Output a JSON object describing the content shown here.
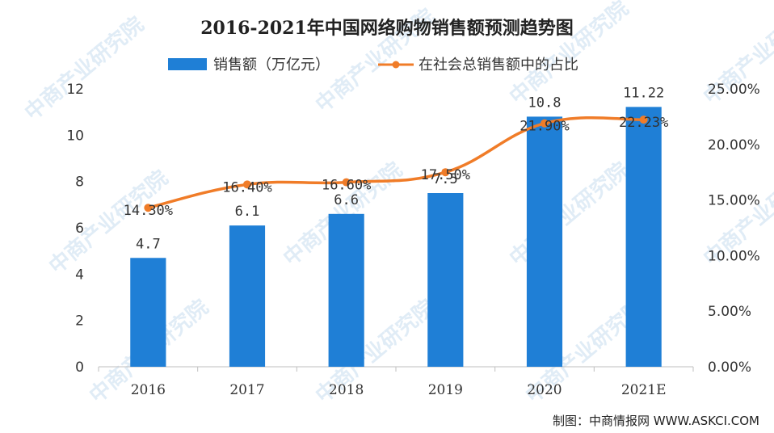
{
  "watermark": "中商产业研究院",
  "source_note": "制图：中商情报网 WWW.ASKCI.COM",
  "chart_data": {
    "type": "bar",
    "title": "2016-2021年中国网络购物销售额预测趋势图",
    "categories": [
      "2016",
      "2017",
      "2018",
      "2019",
      "2020",
      "2021E"
    ],
    "series": [
      {
        "name": "销售额（万亿元）",
        "kind": "bar",
        "axis": "left",
        "color": "#1f7fd6",
        "values": [
          4.7,
          6.1,
          6.6,
          7.5,
          10.8,
          11.22
        ],
        "labels": [
          "4.7",
          "6.1",
          "6.6",
          "7.5",
          "10.8",
          "11.22"
        ]
      },
      {
        "name": "在社会总销售额中的占比",
        "kind": "line",
        "axis": "right",
        "color": "#f07c28",
        "values": [
          14.3,
          16.4,
          16.6,
          17.5,
          21.9,
          22.23
        ],
        "labels": [
          "14.30%",
          "16.40%",
          "16.60%",
          "17.50%",
          "21.90%",
          "22.23%"
        ]
      }
    ],
    "y_left": {
      "ylim": [
        0,
        12
      ],
      "ticks": [
        "0",
        "2",
        "4",
        "6",
        "8",
        "10",
        "12"
      ]
    },
    "y_right": {
      "ylim": [
        0,
        25
      ],
      "ticks": [
        "0.00%",
        "5.00%",
        "10.00%",
        "15.00%",
        "20.00%",
        "25.00%"
      ]
    },
    "legend": "top",
    "grid": false
  }
}
